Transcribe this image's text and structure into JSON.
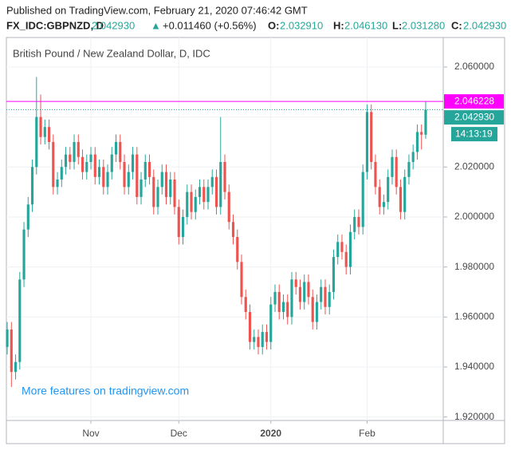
{
  "header": {
    "published": "Published on TradingView.com, February 21, 2020 07:46:42 GMT",
    "symbol": "FX_IDC:GBPNZD, D",
    "last": "2.042930",
    "arrow": "▲",
    "change": "+0.011460 (+0.56%)",
    "o_label": "O:",
    "o": "2.032910",
    "h_label": "H:",
    "h": "2.046130",
    "l_label": "L:",
    "l": "2.031280",
    "c_label": "C:",
    "c": "2.042930"
  },
  "chart_data": {
    "type": "candlestick",
    "title": "British Pound / New Zealand Dollar, D, IDC",
    "watermark": "More features on tradingview.com",
    "up_color": "#26a69a",
    "down_color": "#ef5350",
    "grid": true,
    "open": [
      1.948,
      1.955,
      1.938,
      1.942,
      1.975,
      1.995,
      2.005,
      2.02,
      2.04,
      2.032,
      2.036,
      2.03,
      2.012,
      2.015,
      2.02,
      2.025,
      2.022,
      2.03,
      2.024,
      2.018,
      2.022,
      2.025,
      2.016,
      2.02,
      2.012,
      2.018,
      2.025,
      2.03,
      2.022,
      2.012,
      2.018,
      2.025,
      2.008,
      2.015,
      2.022,
      2.016,
      2.004,
      2.012,
      2.018,
      2.008,
      2.015,
      2.004,
      1.992,
      2.0,
      2.01,
      2.002,
      2.008,
      2.012,
      2.006,
      2.012,
      2.016,
      2.004,
      2.022,
      2.01,
      1.998,
      1.992,
      1.982,
      1.968,
      1.962,
      1.95,
      1.952,
      1.948,
      1.954,
      1.95,
      1.965,
      1.97,
      1.962,
      1.966,
      1.96,
      1.975,
      1.972,
      1.966,
      1.974,
      1.968,
      1.958,
      1.966,
      1.972,
      1.964,
      1.97,
      1.984,
      1.99,
      1.986,
      1.98,
      1.994,
      2.0,
      1.996,
      2.018,
      2.042,
      2.022,
      2.012,
      2.004,
      2.006,
      2.016,
      2.024,
      2.012,
      2.002,
      2.016,
      2.022,
      2.026,
      2.034,
      2.03291
    ],
    "high": [
      1.958,
      1.958,
      1.945,
      1.978,
      1.998,
      2.008,
      2.023,
      2.056,
      2.049,
      2.039,
      2.039,
      2.033,
      2.018,
      2.023,
      2.028,
      2.028,
      2.033,
      2.033,
      2.027,
      2.025,
      2.028,
      2.028,
      2.023,
      2.023,
      2.021,
      2.028,
      2.033,
      2.033,
      2.025,
      2.021,
      2.028,
      2.028,
      2.018,
      2.025,
      2.025,
      2.019,
      2.015,
      2.021,
      2.021,
      2.018,
      2.018,
      2.007,
      2.003,
      2.013,
      2.013,
      2.011,
      2.015,
      2.015,
      2.015,
      2.019,
      2.019,
      2.04,
      2.025,
      2.013,
      2.001,
      1.995,
      1.985,
      1.971,
      1.965,
      1.955,
      1.955,
      1.957,
      1.957,
      1.968,
      1.973,
      1.973,
      1.969,
      1.969,
      1.978,
      1.978,
      1.975,
      1.977,
      1.977,
      1.971,
      1.969,
      1.975,
      1.975,
      1.973,
      1.987,
      1.993,
      1.993,
      1.989,
      1.997,
      2.003,
      2.003,
      2.021,
      2.045,
      2.045,
      2.025,
      2.015,
      2.009,
      2.019,
      2.027,
      2.027,
      2.015,
      2.019,
      2.025,
      2.029,
      2.037,
      2.037,
      2.04613
    ],
    "low": [
      1.945,
      1.932,
      1.935,
      1.939,
      1.972,
      1.992,
      2.002,
      2.017,
      2.029,
      2.029,
      2.027,
      2.009,
      2.009,
      2.012,
      2.017,
      2.019,
      2.019,
      2.021,
      2.015,
      2.015,
      2.019,
      2.013,
      2.013,
      2.009,
      2.009,
      2.015,
      2.022,
      2.019,
      2.009,
      2.009,
      2.015,
      2.005,
      2.005,
      2.012,
      2.013,
      2.001,
      2.001,
      2.009,
      2.005,
      2.005,
      2.001,
      1.989,
      1.989,
      1.997,
      1.999,
      1.999,
      2.005,
      2.003,
      2.003,
      2.009,
      2.001,
      2.001,
      2.007,
      1.995,
      1.989,
      1.979,
      1.965,
      1.959,
      1.947,
      1.947,
      1.945,
      1.945,
      1.947,
      1.947,
      1.962,
      1.959,
      1.959,
      1.957,
      1.957,
      1.969,
      1.963,
      1.963,
      1.965,
      1.955,
      1.955,
      1.963,
      1.961,
      1.961,
      1.967,
      1.981,
      1.983,
      1.977,
      1.977,
      1.991,
      1.993,
      1.993,
      2.015,
      2.019,
      2.009,
      2.001,
      2.001,
      2.003,
      2.013,
      2.009,
      1.999,
      1.999,
      2.013,
      2.019,
      2.023,
      2.027,
      2.03128
    ],
    "close": [
      1.955,
      1.938,
      1.942,
      1.975,
      1.995,
      2.005,
      2.02,
      2.04,
      2.032,
      2.036,
      2.03,
      2.012,
      2.015,
      2.02,
      2.025,
      2.022,
      2.03,
      2.024,
      2.018,
      2.022,
      2.025,
      2.016,
      2.02,
      2.012,
      2.018,
      2.025,
      2.03,
      2.022,
      2.012,
      2.018,
      2.025,
      2.008,
      2.015,
      2.022,
      2.016,
      2.004,
      2.012,
      2.018,
      2.008,
      2.015,
      2.004,
      1.992,
      2.0,
      2.01,
      2.002,
      2.008,
      2.012,
      2.006,
      2.012,
      2.016,
      2.004,
      2.022,
      2.01,
      1.998,
      1.992,
      1.982,
      1.968,
      1.962,
      1.95,
      1.952,
      1.948,
      1.954,
      1.95,
      1.965,
      1.97,
      1.962,
      1.966,
      1.96,
      1.975,
      1.972,
      1.966,
      1.974,
      1.968,
      1.958,
      1.966,
      1.972,
      1.964,
      1.97,
      1.984,
      1.99,
      1.986,
      1.98,
      1.994,
      2.0,
      1.996,
      2.018,
      2.042,
      2.022,
      2.012,
      2.004,
      2.006,
      2.016,
      2.024,
      2.012,
      2.002,
      2.016,
      2.022,
      2.026,
      2.034,
      2.03291,
      2.04293
    ],
    "xlim": [
      -0.2,
      104.2
    ],
    "xticks": [
      {
        "value": 20,
        "label": "Nov"
      },
      {
        "value": 41,
        "label": "Dec"
      },
      {
        "value": 63,
        "label": "2020"
      },
      {
        "value": 86,
        "label": "Feb"
      }
    ],
    "ylim": [
      1.9186,
      2.0718
    ],
    "yticks": [
      {
        "value": 1.92,
        "label": "1.920000"
      },
      {
        "value": 1.94,
        "label": "1.940000"
      },
      {
        "value": 1.96,
        "label": "1.960000"
      },
      {
        "value": 1.98,
        "label": "1.980000"
      },
      {
        "value": 2.0,
        "label": "2.000000"
      },
      {
        "value": 2.02,
        "label": "2.020000"
      },
      {
        "value": 2.04,
        "label": "2.040000"
      },
      {
        "value": 2.06,
        "label": "2.060000"
      }
    ],
    "hline": {
      "value": 2.046228,
      "label": "2.046228",
      "color": "#ff00ff"
    },
    "last_price": {
      "value": 2.04293,
      "label": "2.042930",
      "color": "#26a69a"
    },
    "countdown": "14:13:19"
  }
}
